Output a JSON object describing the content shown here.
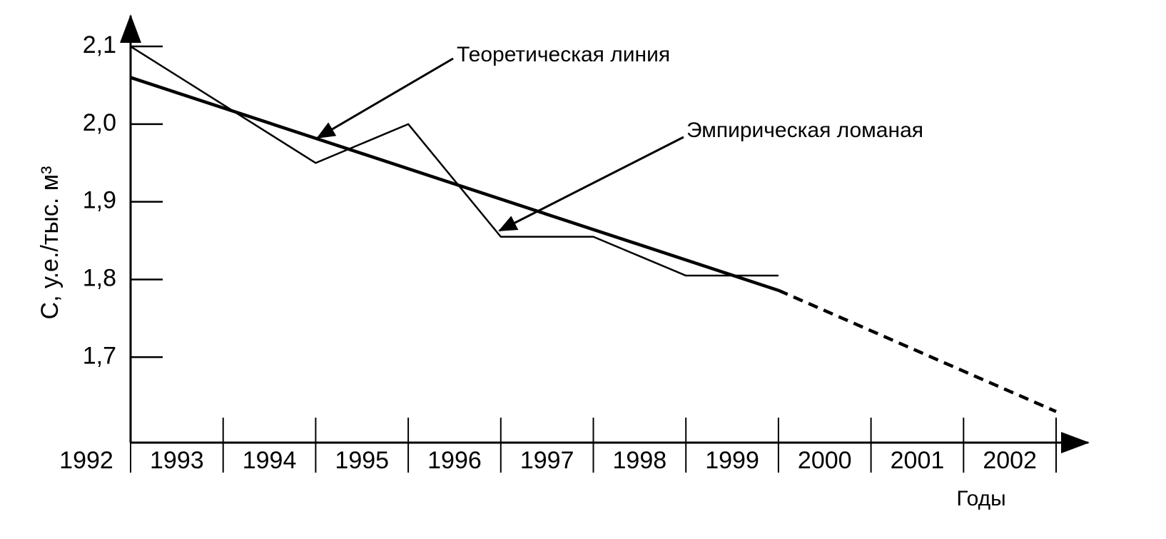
{
  "chart_data": {
    "type": "line",
    "y_label": "С, у.е./тыс. м³",
    "x_label": "Годы",
    "annotations": [
      "Теоретическая линия",
      "Эмпирическая ломаная"
    ],
    "xlim": [
      1992,
      2002
    ],
    "xticks": [
      1992,
      1993,
      1994,
      1995,
      1996,
      1997,
      1998,
      1999,
      2000,
      2001,
      2002
    ],
    "ylim": [
      1.59,
      2.14
    ],
    "yticks": [
      {
        "value": 1.7,
        "label": "1,7"
      },
      {
        "value": 1.8,
        "label": "1,8"
      },
      {
        "value": 1.9,
        "label": "1,9"
      },
      {
        "value": 2.0,
        "label": "2,0"
      },
      {
        "value": 2.1,
        "label": "2,1"
      }
    ],
    "series": [
      {
        "color": "#000000",
        "dashed": false,
        "width": 2.5,
        "x": [
          1992,
          1994,
          1995,
          1996,
          1997,
          1998,
          1999
        ],
        "values": [
          2.1,
          1.95,
          2.0,
          1.855,
          1.855,
          1.805,
          1.805
        ]
      },
      {
        "color": "#000000",
        "dashed": false,
        "width": 4.5,
        "x": [
          1992,
          1999
        ],
        "values": [
          2.06,
          1.786
        ]
      },
      {
        "color": "#000000",
        "dashed": true,
        "width": 4.5,
        "x": [
          1999,
          2002
        ],
        "values": [
          1.786,
          1.63
        ]
      }
    ]
  }
}
